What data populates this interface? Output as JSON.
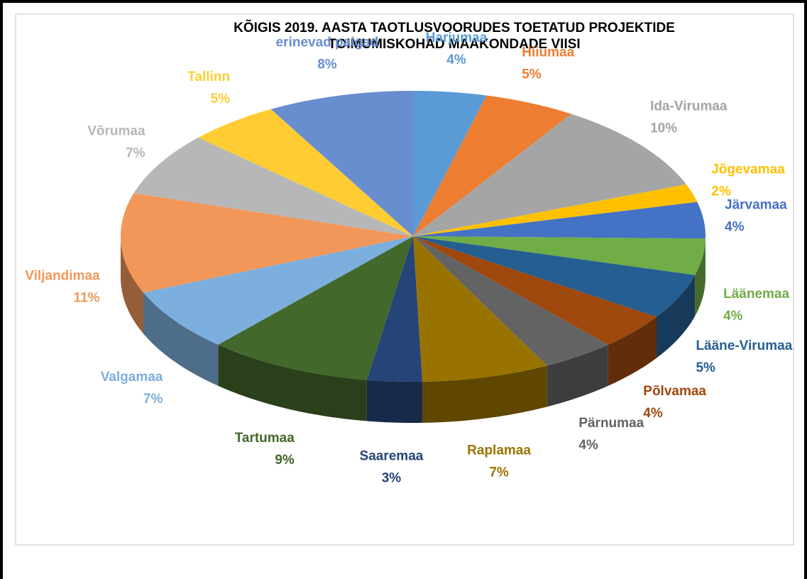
{
  "chart_data": {
    "type": "pie",
    "title": [
      "KÕIGIS 2019. AASTA TAOTLUSVOORUDES TOETATUD PROJEKTIDE",
      "TOIMUMISKOHAD MAAKONDADE VIISI"
    ],
    "categories": [
      "Harjumaa",
      "Hiiumaa",
      "Ida-Virumaa",
      "Jõgevamaa",
      "Järvamaa",
      "Läänemaa",
      "Lääne-Virumaa",
      "Põlvamaa",
      "Pärnumaa",
      "Raplamaa",
      "Saaremaa",
      "Tartumaa",
      "Valgamaa",
      "Viljandimaa",
      "Võrumaa",
      "Tallinn",
      "erinevad paigad"
    ],
    "values": [
      4,
      5,
      10,
      2,
      4,
      4,
      5,
      4,
      4,
      7,
      3,
      9,
      7,
      11,
      7,
      5,
      8
    ],
    "value_labels": [
      "4%",
      "5%",
      "10%",
      "2%",
      "4%",
      "4%",
      "5%",
      "4%",
      "4%",
      "7%",
      "3%",
      "9%",
      "7%",
      "11%",
      "7%",
      "5%",
      "8%"
    ],
    "colors": [
      "#5b9bd5",
      "#ed7d31",
      "#a5a5a5",
      "#ffc000",
      "#4472c4",
      "#70ad47",
      "#255e91",
      "#9e480e",
      "#636363",
      "#997300",
      "#264478",
      "#43682b",
      "#7cafdd",
      "#f1975a",
      "#b7b7b7",
      "#ffcd33",
      "#698ed0"
    ]
  }
}
